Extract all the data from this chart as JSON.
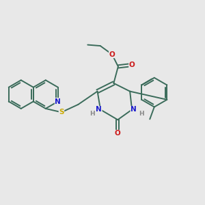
{
  "bg_color": "#e8e8e8",
  "bond_color": "#3a6b5a",
  "n_color": "#1a1acc",
  "o_color": "#cc1a1a",
  "s_color": "#ccaa00",
  "h_color": "#888888",
  "lw": 1.4,
  "figsize": [
    3.0,
    3.0
  ],
  "dpi": 100,
  "xlim": [
    0.0,
    10.0
  ],
  "ylim": [
    1.5,
    8.5
  ]
}
